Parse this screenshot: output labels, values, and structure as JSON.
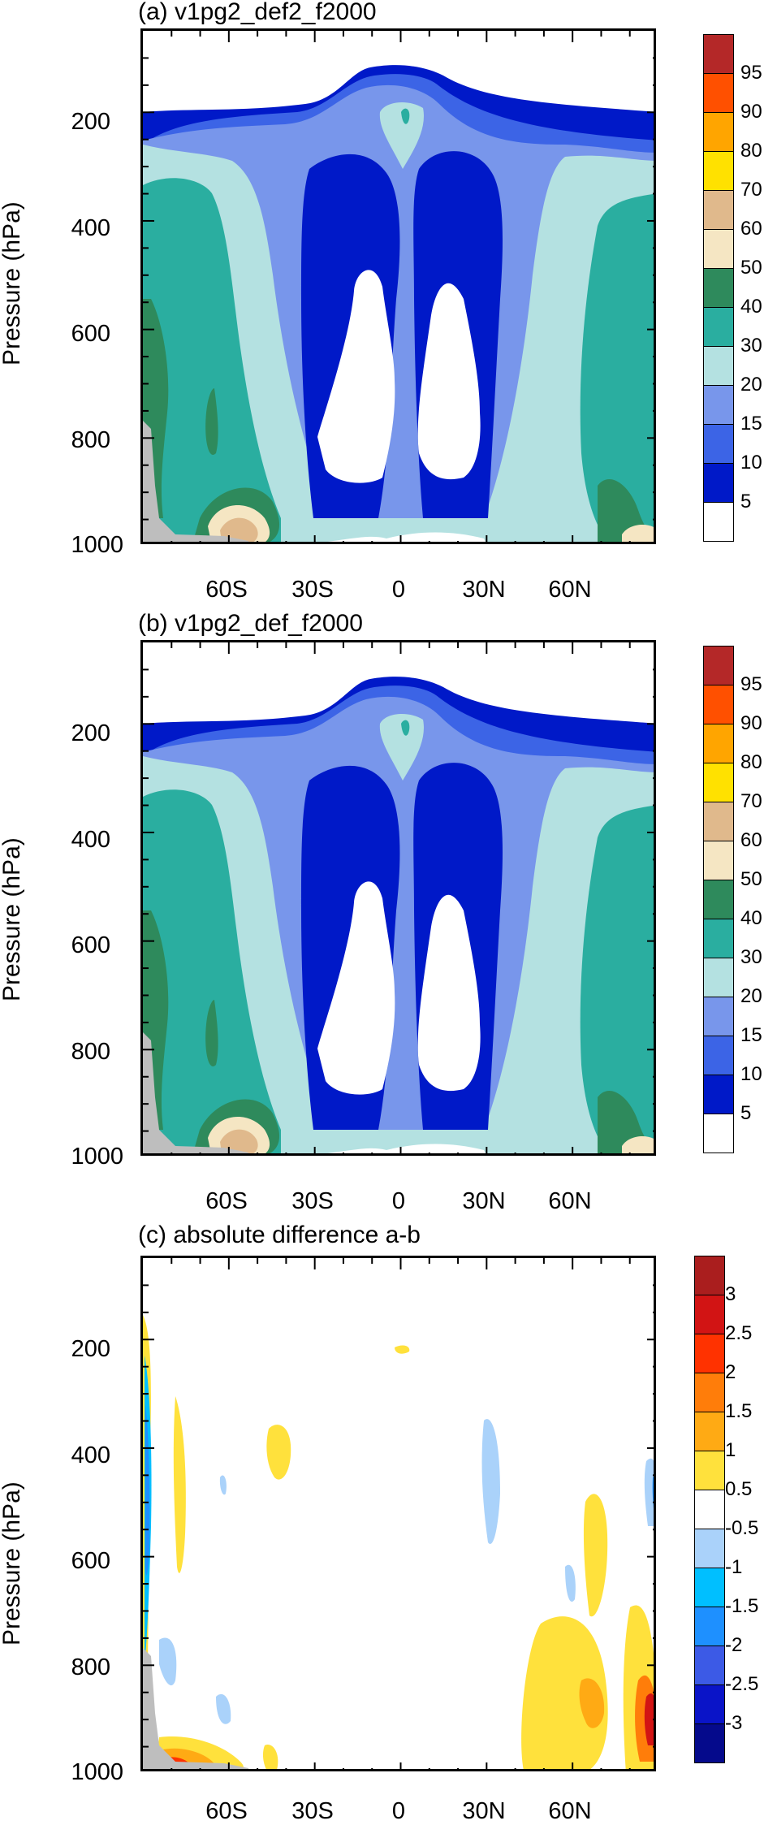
{
  "axes": {
    "ylabel": "Pressure (hPa)",
    "yticks": [
      "200",
      "400",
      "600",
      "800",
      "1000"
    ],
    "xticks": [
      "60S",
      "30S",
      "0",
      "30N",
      "60N"
    ]
  },
  "colors": {
    "seq": [
      "#ffffff",
      "#0019c8",
      "#3c64e6",
      "#7896eb",
      "#b4e1e1",
      "#2aaea0",
      "#2e8a5c",
      "#f5e6c3",
      "#e0b98c",
      "#ffe100",
      "#ffa500",
      "#ff5000",
      "#b42828"
    ],
    "diff": [
      "#050a8c",
      "#0a14c8",
      "#3c5ae6",
      "#1e90ff",
      "#00bfff",
      "#aad2fa",
      "#ffffff",
      "#ffe13c",
      "#ffaa14",
      "#ff7d0a",
      "#ff3200",
      "#d21414",
      "#aa1e1e"
    ],
    "terrain": "#bebebe"
  },
  "chart_data": [
    {
      "type": "contour",
      "title": "(a) v1pg2_def2_f2000",
      "ylabel": "Pressure (hPa)",
      "ylim": [
        1000,
        50
      ],
      "xlim": [
        -90,
        90
      ],
      "colorbar_labels": [
        "5",
        "10",
        "15",
        "20",
        "30",
        "40",
        "50",
        "60",
        "70",
        "80",
        "90",
        "95"
      ]
    },
    {
      "type": "contour",
      "title": "(b) v1pg2_def_f2000",
      "ylabel": "Pressure (hPa)",
      "ylim": [
        1000,
        50
      ],
      "xlim": [
        -90,
        90
      ],
      "colorbar_labels": [
        "5",
        "10",
        "15",
        "20",
        "30",
        "40",
        "50",
        "60",
        "70",
        "80",
        "90",
        "95"
      ]
    },
    {
      "type": "contour",
      "title": "(c) absolute difference a-b",
      "ylabel": "Pressure (hPa)",
      "ylim": [
        1000,
        50
      ],
      "xlim": [
        -90,
        90
      ],
      "colorbar_labels": [
        "-3",
        "-2.5",
        "-2",
        "-1.5",
        "-1",
        "-0.5",
        "0.5",
        "1",
        "1.5",
        "2",
        "2.5",
        "3"
      ]
    }
  ]
}
